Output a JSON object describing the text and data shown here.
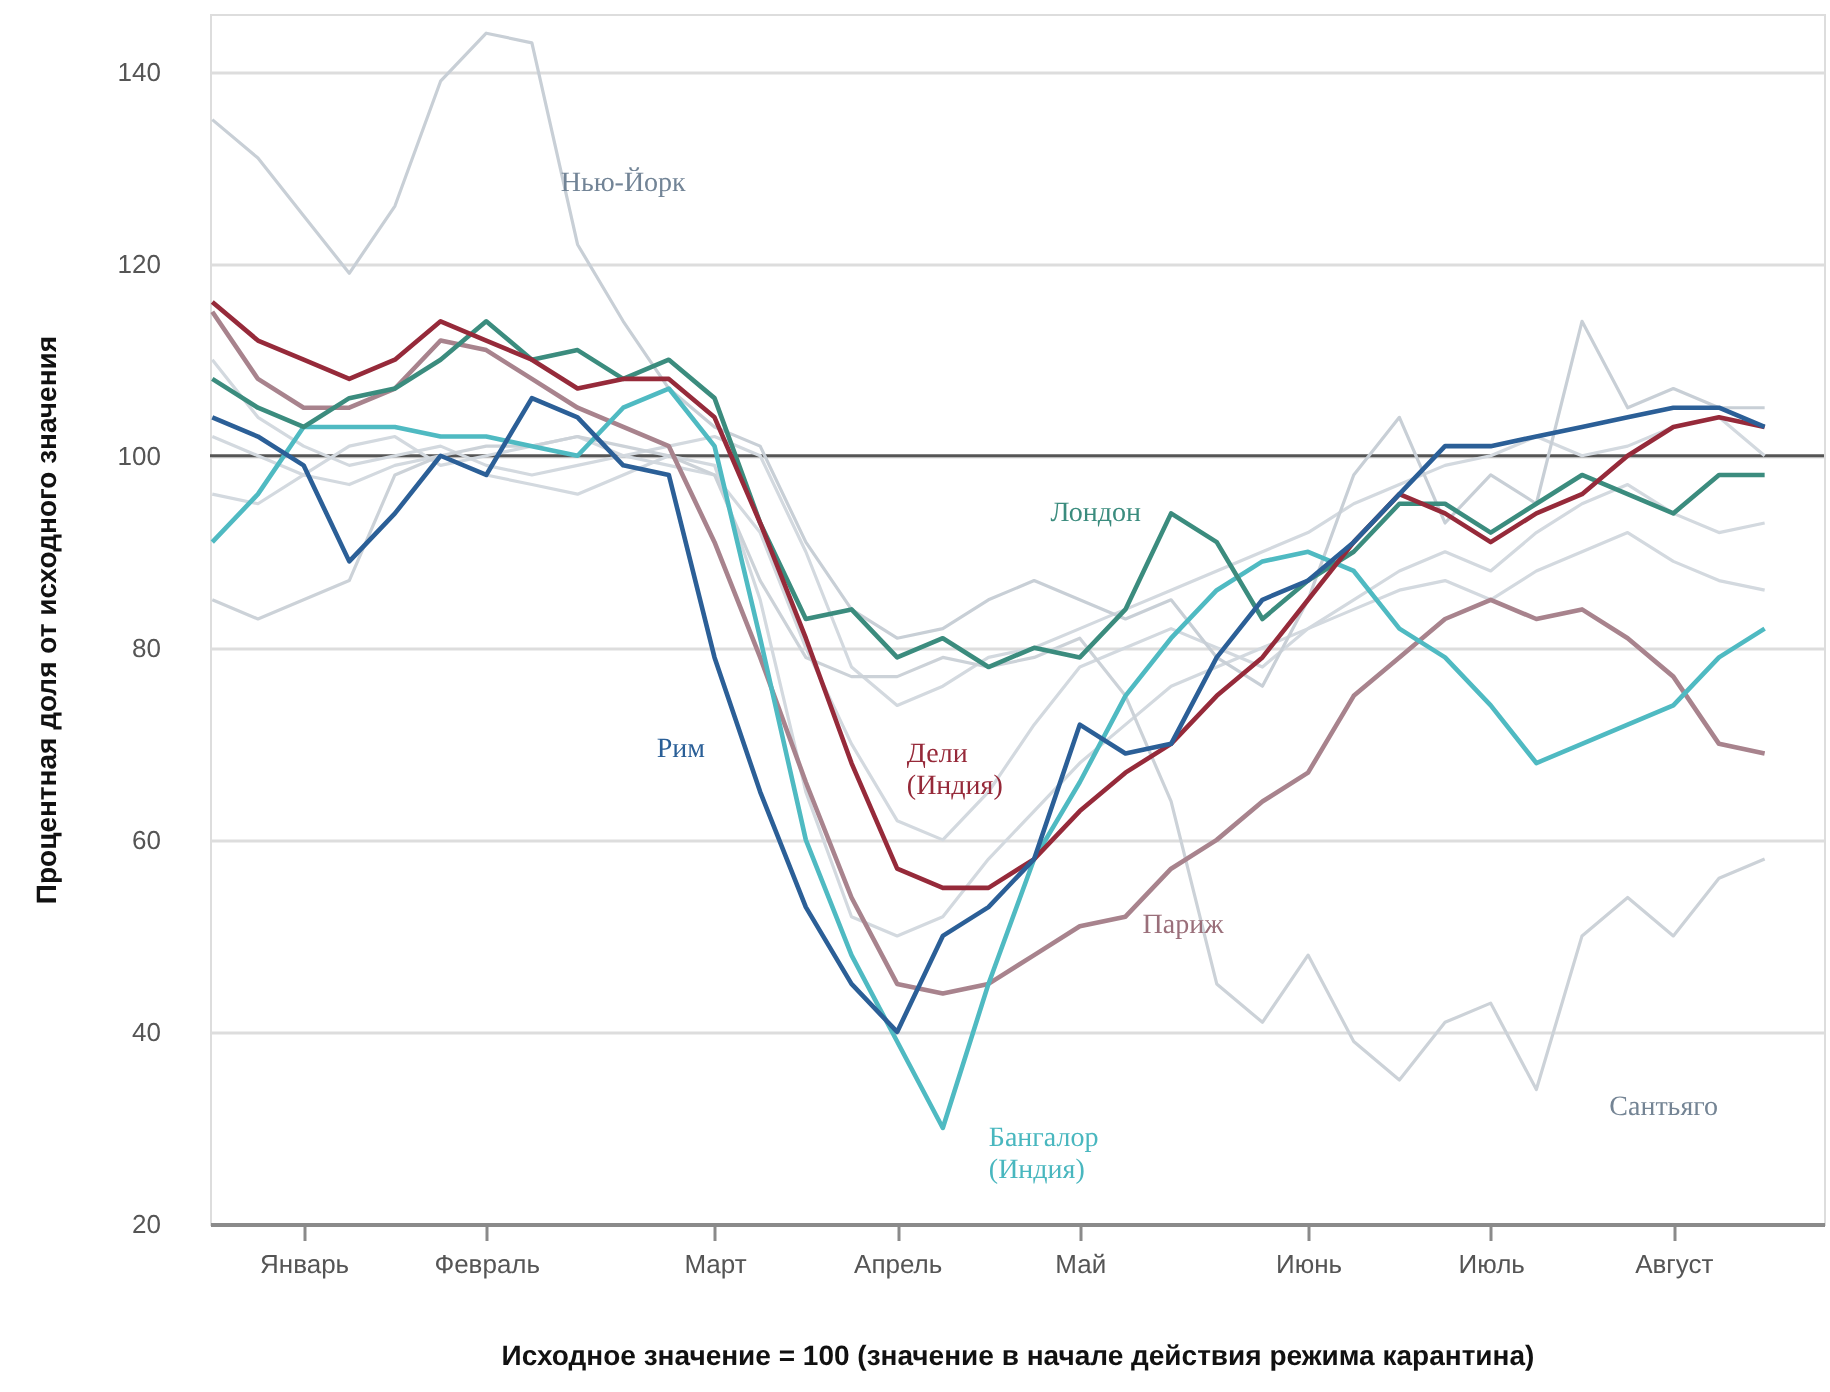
{
  "chart_data": {
    "type": "line",
    "xlabel": "Исходное значение = 100 (значение в начале действия режима карантина)",
    "ylabel": "Процентная доля от исходного значения",
    "categories": [
      null,
      null,
      "Январь",
      null,
      null,
      null,
      "Февраль",
      null,
      null,
      null,
      null,
      "Март",
      null,
      null,
      null,
      "Апрель",
      null,
      null,
      null,
      "Май",
      null,
      null,
      null,
      null,
      "Июнь",
      null,
      null,
      null,
      "Июль",
      null,
      null,
      null,
      "Август",
      null,
      null
    ],
    "series": [
      {
        "color": "#d3d9df",
        "values": [
          110,
          104,
          101,
          99,
          100,
          101,
          99,
          98,
          99,
          100,
          99,
          98,
          92,
          80,
          70,
          62,
          60,
          65,
          72,
          78,
          80,
          82,
          80,
          78,
          82,
          85,
          88,
          90,
          88,
          92,
          95,
          97,
          94,
          92,
          93
        ]
      },
      {
        "color": "#d3d9df",
        "values": [
          102,
          100,
          98,
          97,
          99,
          100,
          98,
          97,
          96,
          98,
          100,
          99,
          85,
          65,
          52,
          50,
          52,
          58,
          63,
          68,
          72,
          76,
          78,
          80,
          82,
          84,
          86,
          87,
          85,
          88,
          90,
          92,
          89,
          87,
          86
        ]
      },
      {
        "color": "#d3d9df",
        "values": [
          96,
          95,
          98,
          101,
          102,
          99,
          100,
          101,
          102,
          100,
          101,
          102,
          100,
          90,
          78,
          74,
          76,
          79,
          80,
          82,
          84,
          86,
          88,
          90,
          92,
          95,
          97,
          99,
          100,
          102,
          100,
          101,
          103,
          104,
          100
        ]
      },
      {
        "name": "Нью-Йорк",
        "color": "#c8cfd6",
        "values": [
          135,
          131,
          125,
          119,
          126,
          139,
          144,
          143,
          122,
          114,
          107,
          103,
          101,
          91,
          84,
          81,
          82,
          85,
          87,
          85,
          83,
          85,
          79,
          76,
          85,
          98,
          104,
          93,
          98,
          95,
          114,
          105,
          107,
          105,
          105
        ]
      },
      {
        "name": "Сантьяго",
        "color": "#ccd2d8",
        "values": [
          85,
          83,
          85,
          87,
          98,
          100,
          101,
          101,
          102,
          101,
          100,
          98,
          87,
          79,
          77,
          77,
          79,
          78,
          79,
          81,
          75,
          64,
          45,
          41,
          48,
          39,
          35,
          41,
          43,
          34,
          50,
          54,
          50,
          56,
          58
        ]
      },
      {
        "name": "Париж",
        "color": "#a8838d",
        "values": [
          115,
          108,
          105,
          105,
          107,
          112,
          111,
          108,
          105,
          103,
          101,
          91,
          79,
          66,
          54,
          45,
          44,
          45,
          48,
          51,
          52,
          57,
          60,
          64,
          67,
          75,
          79,
          83,
          85,
          83,
          84,
          81,
          77,
          70,
          69
        ]
      },
      {
        "name": "Бангалор (Индия)",
        "color": "#4fbac2",
        "values": [
          91,
          96,
          103,
          103,
          103,
          102,
          102,
          101,
          100,
          105,
          107,
          101,
          81,
          60,
          48,
          39,
          30,
          45,
          58,
          66,
          75,
          81,
          86,
          89,
          90,
          88,
          82,
          79,
          74,
          68,
          70,
          72,
          74,
          79,
          82
        ]
      },
      {
        "name": "Лондон",
        "color": "#3b8c7e",
        "values": [
          108,
          105,
          103,
          106,
          107,
          110,
          114,
          110,
          111,
          108,
          110,
          106,
          93,
          83,
          84,
          79,
          81,
          78,
          80,
          79,
          84,
          94,
          91,
          83,
          87,
          90,
          95,
          95,
          92,
          95,
          98,
          96,
          94,
          98,
          98
        ]
      },
      {
        "name": "Дели (Индия)",
        "color": "#962a3a",
        "values": [
          116,
          112,
          110,
          108,
          110,
          114,
          112,
          110,
          107,
          108,
          108,
          104,
          93,
          81,
          68,
          57,
          55,
          55,
          58,
          63,
          67,
          70,
          75,
          79,
          85,
          91,
          96,
          94,
          91,
          94,
          96,
          100,
          103,
          104,
          103
        ]
      },
      {
        "name": "Рим",
        "color": "#2b5f97",
        "values": [
          104,
          102,
          99,
          89,
          94,
          100,
          98,
          106,
          104,
          99,
          98,
          79,
          65,
          53,
          45,
          40,
          50,
          53,
          58,
          72,
          69,
          70,
          79,
          85,
          87,
          91,
          96,
          101,
          101,
          102,
          103,
          104,
          105,
          105,
          103
        ]
      }
    ],
    "ylim": [
      20,
      146
    ],
    "yticks": [
      20,
      40,
      60,
      80,
      100,
      120,
      140
    ],
    "ref_lines": [
      {
        "axis": "y",
        "value": 100,
        "color": "#555555"
      }
    ],
    "grid": "y"
  }
}
